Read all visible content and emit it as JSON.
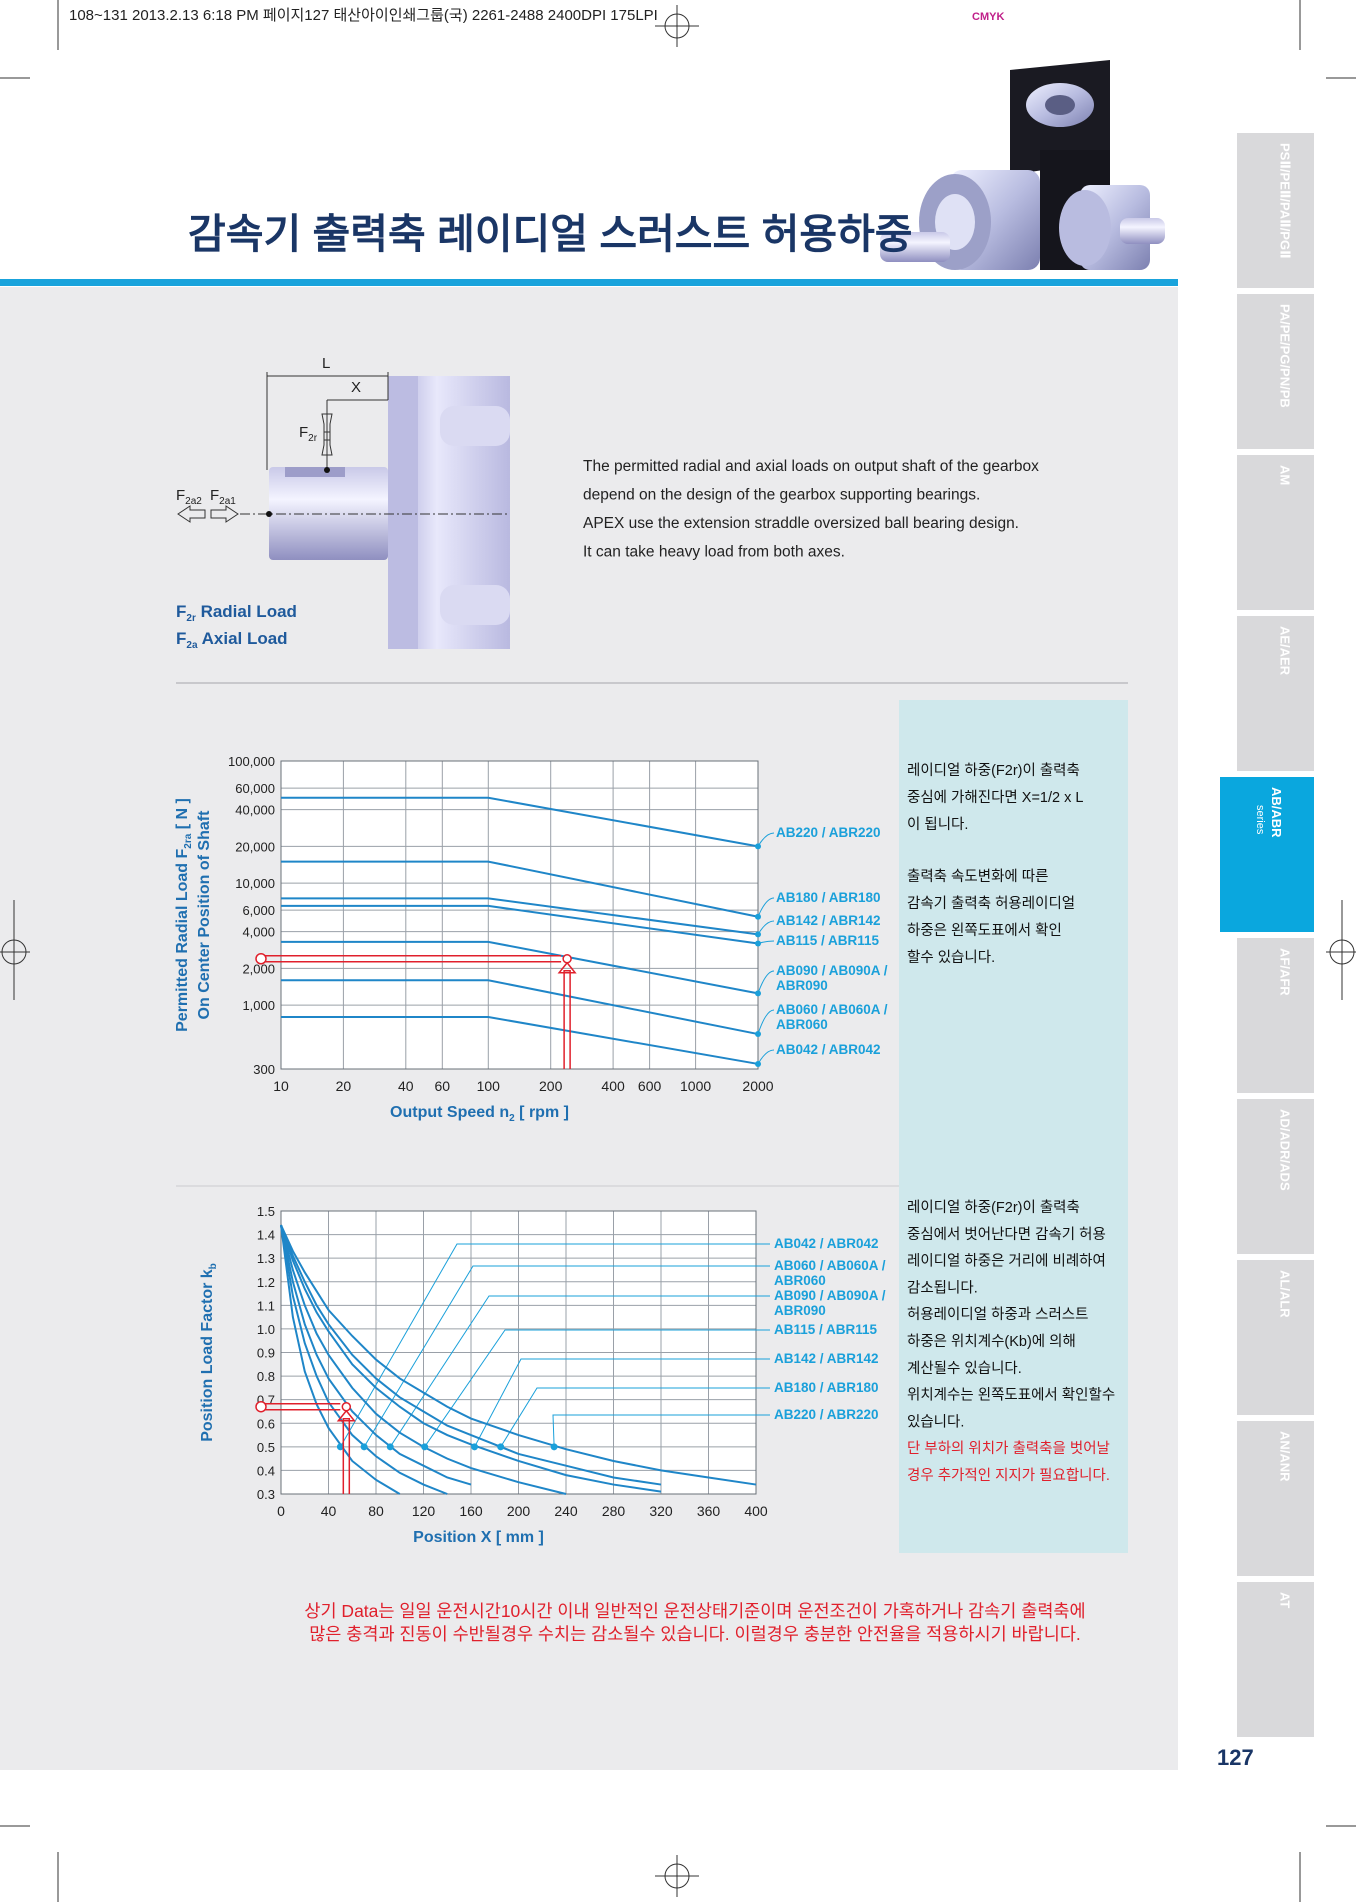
{
  "print_header": {
    "text": "108~131  2013.2.13 6:18 PM  페이지127   태산아이인쇄그룹(국) 2261-2488  2400DPI 175LPI",
    "cmyk": "CMYK"
  },
  "title": "감속기 출력축 레이디얼 스러스트 허용하중",
  "diagram": {
    "labels": [
      {
        "text": "L"
      },
      {
        "text": "X"
      },
      {
        "text": "F",
        "sub": "2r"
      },
      {
        "text": "F",
        "sub": "2a2"
      },
      {
        "text": "F",
        "sub": "2a1"
      }
    ],
    "legend": [
      {
        "text": "F",
        "sub": "2r",
        "after": " Radial Load"
      },
      {
        "text": "F",
        "sub": "2a",
        "after": " Axial Load"
      }
    ]
  },
  "description": [
    "The permitted radial and axial loads on output shaft of the gearbox",
    "depend on the design of the gearbox supporting bearings.",
    "APEX use the extension straddle oversized ball bearing design.",
    "It can take heavy load from both axes."
  ],
  "chart_data": [
    {
      "type": "line",
      "xscale": "log",
      "yscale": "log",
      "grid": true,
      "color": "#1f86c8",
      "label_color": "#1aa0da",
      "xlabel": {
        "text": "Output Speed n",
        "sub": "2",
        "after": " [ rpm ]"
      },
      "ylabel": [
        {
          "text": "Permitted Radial Load F",
          "sub": "2ra",
          "after": " [ N ]"
        },
        {
          "text": "On Center Position of Shaft"
        }
      ],
      "xlim": [
        10,
        2000
      ],
      "ylim": [
        300,
        100000
      ],
      "xticks": [
        10,
        20,
        40,
        60,
        100,
        200,
        400,
        600,
        1000,
        2000
      ],
      "yticks": [
        {
          "value": 100000,
          "label": "100,000"
        },
        {
          "value": 60000,
          "label": "60,000"
        },
        {
          "value": 40000,
          "label": "40,000"
        },
        {
          "value": 20000,
          "label": "20,000"
        },
        {
          "value": 10000,
          "label": "10,000"
        },
        {
          "value": 6000,
          "label": "6,000"
        },
        {
          "value": 4000,
          "label": "4,000"
        },
        {
          "value": 2000,
          "label": "2,000"
        },
        {
          "value": 1000,
          "label": "1,000"
        },
        300
      ],
      "x": [
        10,
        100,
        2000
      ],
      "series": [
        {
          "name": "AB220 / ABR220",
          "values": [
            50000,
            50000,
            20000
          ]
        },
        {
          "name": "AB180 / ABR180",
          "values": [
            15000,
            15000,
            5300
          ]
        },
        {
          "name": "AB142 / ABR142",
          "values": [
            7500,
            7500,
            3800
          ]
        },
        {
          "name": "AB115 / ABR115",
          "values": [
            6500,
            6500,
            3200
          ]
        },
        {
          "name": "AB090 / AB090A / ABR090",
          "values": [
            3300,
            3300,
            1250
          ]
        },
        {
          "name": "AB060 / AB060A / ABR060",
          "values": [
            1600,
            1600,
            580
          ]
        },
        {
          "name": "AB042 / ABR042",
          "values": [
            800,
            800,
            330
          ]
        }
      ],
      "example": {
        "x": 240,
        "y": 2400
      }
    },
    {
      "type": "line",
      "grid": true,
      "color": "#1f86c8",
      "label_color": "#1aa0da",
      "xlabel": {
        "text": "Position X [ mm ]"
      },
      "ylabel": [
        {
          "text": "Position Load Factor k",
          "sub": "b"
        }
      ],
      "xlim": [
        0,
        400
      ],
      "ylim": [
        0.3,
        1.5
      ],
      "xticks": [
        0,
        40,
        80,
        120,
        160,
        200,
        240,
        280,
        320,
        360,
        400
      ],
      "yticks": [
        1.5,
        1.4,
        1.3,
        1.2,
        1.1,
        {
          "value": 1,
          "label": "1.0"
        },
        0.9,
        0.8,
        0.7,
        0.6,
        0.5,
        0.4,
        0.3
      ],
      "series": [
        {
          "name": "AB042 / ABR042",
          "x": [
            0,
            10,
            20,
            30,
            40,
            60,
            80,
            100
          ],
          "values": [
            1.44,
            1.05,
            0.82,
            0.68,
            0.58,
            0.44,
            0.36,
            0.3
          ],
          "marker": {
            "x": 50,
            "y": 0.5
          }
        },
        {
          "name": "AB060 / AB060A / ABR060",
          "x": [
            0,
            10,
            20,
            30,
            40,
            60,
            80,
            100,
            120,
            140
          ],
          "values": [
            1.44,
            1.14,
            0.94,
            0.8,
            0.69,
            0.55,
            0.46,
            0.39,
            0.34,
            0.3
          ],
          "marker": {
            "x": 70,
            "y": 0.5
          }
        },
        {
          "name": "AB090 / AB090A / ABR090",
          "x": [
            0,
            10,
            20,
            30,
            40,
            60,
            80,
            100,
            120,
            140,
            160
          ],
          "values": [
            1.44,
            1.2,
            1.02,
            0.89,
            0.79,
            0.65,
            0.55,
            0.47,
            0.42,
            0.37,
            0.34
          ],
          "marker": {
            "x": 92,
            "y": 0.5
          }
        },
        {
          "name": "AB115 / ABR115",
          "x": [
            0,
            10,
            20,
            30,
            40,
            60,
            80,
            100,
            120,
            140,
            160,
            200,
            240
          ],
          "values": [
            1.44,
            1.25,
            1.1,
            0.98,
            0.89,
            0.75,
            0.64,
            0.56,
            0.5,
            0.45,
            0.41,
            0.35,
            0.3
          ],
          "marker": {
            "x": 121,
            "y": 0.5
          }
        },
        {
          "name": "AB142 / ABR142",
          "x": [
            0,
            10,
            20,
            30,
            40,
            60,
            80,
            100,
            120,
            140,
            160,
            200,
            240,
            280,
            320
          ],
          "values": [
            1.44,
            1.29,
            1.17,
            1.07,
            0.99,
            0.85,
            0.75,
            0.67,
            0.6,
            0.55,
            0.51,
            0.44,
            0.38,
            0.34,
            0.31
          ],
          "marker": {
            "x": 163,
            "y": 0.5
          }
        },
        {
          "name": "AB180 / ABR180",
          "x": [
            0,
            10,
            20,
            30,
            40,
            60,
            80,
            100,
            120,
            140,
            160,
            200,
            240,
            280,
            320
          ],
          "values": [
            1.44,
            1.31,
            1.2,
            1.1,
            1.02,
            0.89,
            0.79,
            0.71,
            0.65,
            0.59,
            0.55,
            0.47,
            0.42,
            0.37,
            0.34
          ],
          "marker": {
            "x": 185,
            "y": 0.5
          }
        },
        {
          "name": "AB220 / ABR220",
          "x": [
            0,
            10,
            20,
            30,
            40,
            60,
            80,
            100,
            120,
            140,
            160,
            200,
            240,
            280,
            320,
            360,
            400
          ],
          "values": [
            1.44,
            1.33,
            1.24,
            1.16,
            1.08,
            0.97,
            0.87,
            0.79,
            0.73,
            0.67,
            0.62,
            0.55,
            0.49,
            0.44,
            0.4,
            0.37,
            0.34
          ],
          "marker": {
            "x": 230,
            "y": 0.5
          }
        }
      ],
      "example": {
        "x": 55,
        "y": 0.67
      }
    }
  ],
  "panel_top": [
    [
      "레이디얼 하중(F2r)이 출력축",
      "중심에 가해진다면 X=1/2 x L",
      "이 됩니다."
    ],
    [
      "출력축 속도변화에 따른",
      "감속기 출력축 허용레이디얼",
      "하중은 왼쪽도표에서 확인",
      "할수 있습니다."
    ]
  ],
  "panel_bottom": [
    "레이디얼 하중(F2r)이 출력축",
    "중심에서 벗어난다면 감속기 허용",
    "레이디얼 하중은 거리에 비례하여",
    "감소됩니다.",
    "허용레이디얼 하중과 스러스트",
    "하중은 위치계수(Kb)에 의해",
    "계산될수 있습니다.",
    "위치계수는 왼쪽도표에서 확인할수",
    "있습니다."
  ],
  "panel_bottom_red": [
    "단 부하의 위치가 출력축을 벗어날",
    "경우 추가적인 지지가 필요합니다."
  ],
  "footer_notice": [
    "상기 Data는 일일 운전시간10시간 이내 일반적인 운전상태기준이며 운전조건이 가혹하거나 감속기 출력축에",
    "많은 충격과 진동이 수반될경우 수치는 감소될수 있습니다. 이럴경우 충분한 안전율을 적용하시기 바랍니다."
  ],
  "side_tabs": [
    {
      "label": "PSⅡ/PEⅡ/PAⅡ/PGⅡ"
    },
    {
      "label": "PA/PE/PG/PN/PB"
    },
    {
      "label": "AM"
    },
    {
      "label": "AE/AER"
    },
    {
      "label": "AB/ABR",
      "sub": "series",
      "active": true
    },
    {
      "label": "AF/AFR"
    },
    {
      "label": "AD/ADR/ADS"
    },
    {
      "label": "AL/ALR"
    },
    {
      "label": "AN/ANR"
    },
    {
      "label": "AT"
    }
  ],
  "page_number": "127"
}
